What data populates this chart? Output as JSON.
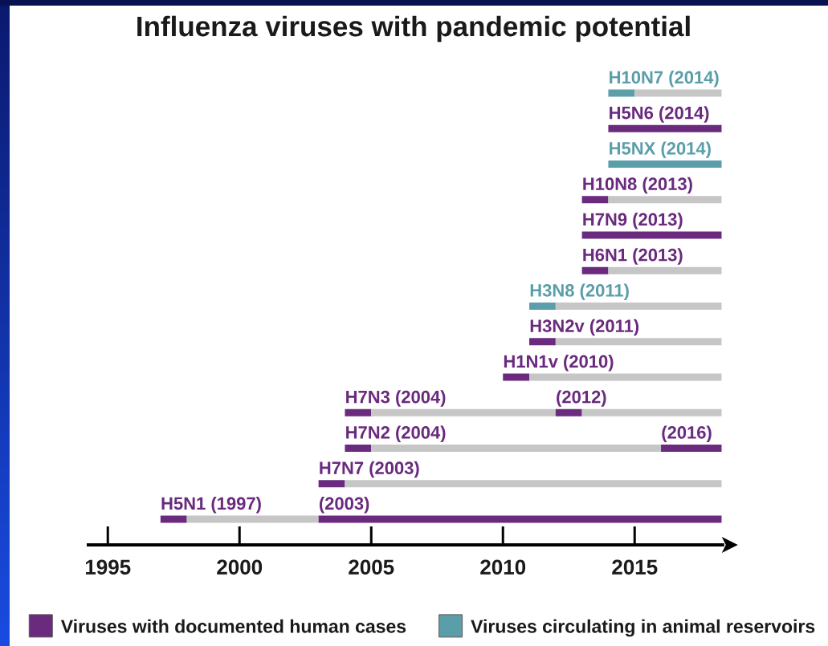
{
  "chart_data": {
    "type": "bar",
    "orientation": "horizontal",
    "title": "Influenza viruses with pandemic potential",
    "categories": [
      "H10N7 (2014)",
      "H5N6 (2014)",
      "H5NX (2014)",
      "H10N8 (2013)",
      "H7N9 (2013)",
      "H6N1 (2013)",
      "H3N8 (2011)",
      "H3N2v (2011)",
      "H1N1v (2010)",
      "H7N3 (2004)",
      "H7N2 (2004)",
      "H7N7 (2003)",
      "H5N1 (1997)"
    ],
    "series": [
      {
        "name": "Viruses with documented human cases",
        "color": "#6a2a7e",
        "base": [
          null,
          2014,
          null,
          2013,
          2013,
          2013,
          null,
          2011,
          2010,
          2004,
          2004,
          2003,
          1997
        ],
        "values": [
          null,
          4.3,
          null,
          1,
          5.3,
          1,
          null,
          1,
          1,
          1,
          1,
          1,
          1
        ]
      },
      {
        "name": "Viruses circulating in animal reservoirs",
        "color": "#5a9ea9",
        "base": [
          2014,
          null,
          2014,
          null,
          null,
          null,
          2011,
          null,
          null,
          null,
          null,
          null,
          null
        ],
        "values": [
          1,
          null,
          4.3,
          null,
          null,
          null,
          1,
          null,
          null,
          null,
          null,
          null,
          null
        ]
      },
      {
        "color": "#c6c6c6",
        "base": [
          2015,
          null,
          null,
          2014,
          null,
          2014,
          2012,
          2012,
          2011,
          2005,
          2005,
          2004,
          1998
        ],
        "values": [
          3.3,
          null,
          null,
          4.3,
          null,
          4.3,
          6.3,
          6.3,
          7.3,
          7,
          11,
          14.3,
          5
        ]
      },
      {
        "color": "#6a2a7e",
        "base": [
          null,
          null,
          null,
          null,
          null,
          null,
          null,
          null,
          null,
          2012,
          2016,
          null,
          2003
        ],
        "values": [
          null,
          null,
          null,
          null,
          null,
          null,
          null,
          null,
          null,
          1,
          2.3,
          null,
          15.3
        ]
      },
      {
        "color": "#c6c6c6",
        "base": [
          null,
          null,
          null,
          null,
          null,
          null,
          null,
          null,
          null,
          2013,
          null,
          null,
          null
        ],
        "values": [
          null,
          null,
          null,
          null,
          null,
          null,
          null,
          null,
          null,
          5.3,
          null,
          null,
          null
        ]
      }
    ],
    "xlim": [
      1994.2,
      2018.4
    ],
    "xticks": [
      1995,
      2000,
      2005,
      2010,
      2015
    ],
    "annotations": [
      {
        "text": "(2012)",
        "x": 2012,
        "y": "H7N3 (2004)"
      },
      {
        "text": "(2016)",
        "x": 2016,
        "y": "H7N2 (2004)"
      },
      {
        "text": "(2003)",
        "x": 2003,
        "y": "H5N1 (1997)"
      }
    ],
    "legend": "bottom"
  }
}
